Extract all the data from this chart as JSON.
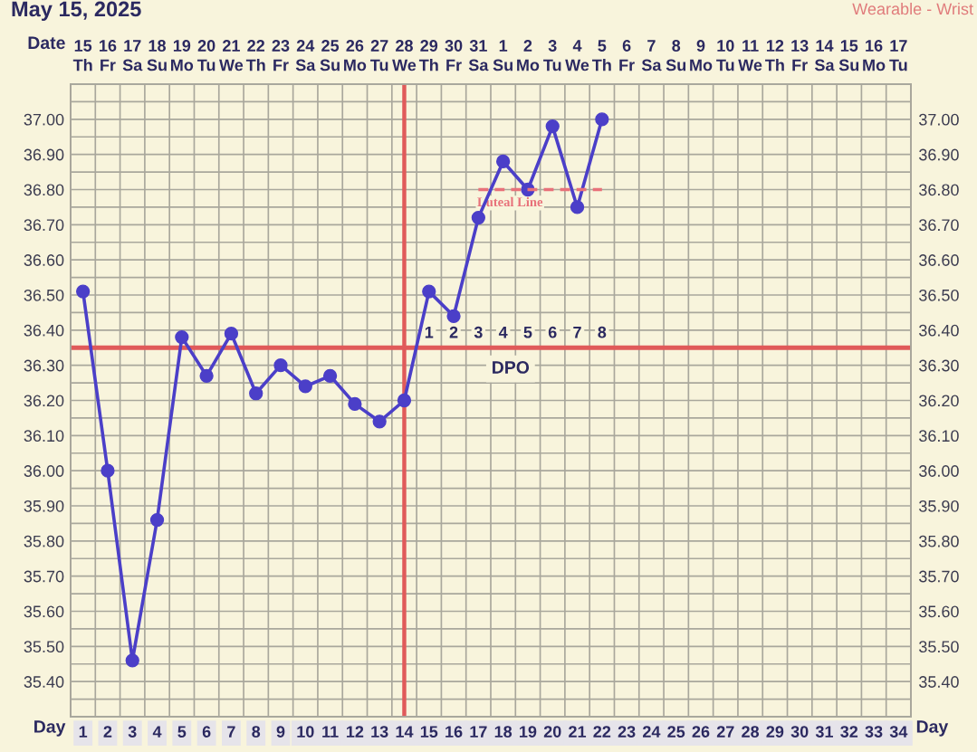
{
  "chart_data": {
    "type": "line",
    "title": "May 15, 2025",
    "xlabel": "Day",
    "x2label": "Date",
    "annotations": [
      "Wearable - Wrist",
      "DPO",
      {
        "text": "1",
        "x": 15,
        "y": 36.39
      },
      {
        "text": "2",
        "x": 16,
        "y": 36.39
      },
      {
        "text": "3",
        "x": 17,
        "y": 36.39
      },
      {
        "text": "4",
        "x": 18,
        "y": 36.39
      },
      {
        "text": "5",
        "x": 19,
        "y": 36.39
      },
      {
        "text": "6",
        "x": 20,
        "y": 36.39
      },
      {
        "text": "7",
        "x": 21,
        "y": 36.39
      },
      {
        "text": "8",
        "x": 22,
        "y": 36.39
      }
    ],
    "xlim": [
      0.5,
      34.5
    ],
    "xticks": [
      1,
      2,
      3,
      4,
      5,
      6,
      7,
      8,
      9,
      10,
      11,
      12,
      13,
      14,
      15,
      16,
      17,
      18,
      19,
      20,
      21,
      22,
      23,
      24,
      25,
      26,
      27,
      28,
      29,
      30,
      31,
      32,
      33,
      34
    ],
    "x2lim": [
      "2025-05-14T12:00",
      "2025-06-17T12:00"
    ],
    "x2ticks": [
      {
        "value": "2025-05-15",
        "label": "15\nTh"
      },
      {
        "value": "2025-05-16",
        "label": "16\nFr"
      },
      {
        "value": "2025-05-17",
        "label": "17\nSa"
      },
      {
        "value": "2025-05-18",
        "label": "18\nSu"
      },
      {
        "value": "2025-05-19",
        "label": "19\nMo"
      },
      {
        "value": "2025-05-20",
        "label": "20\nTu"
      },
      {
        "value": "2025-05-21",
        "label": "21\nWe"
      },
      {
        "value": "2025-05-22",
        "label": "22\nTh"
      },
      {
        "value": "2025-05-23",
        "label": "23\nFr"
      },
      {
        "value": "2025-05-24",
        "label": "24\nSa"
      },
      {
        "value": "2025-05-25",
        "label": "25\nSu"
      },
      {
        "value": "2025-05-26",
        "label": "26\nMo"
      },
      {
        "value": "2025-05-27",
        "label": "27\nTu"
      },
      {
        "value": "2025-05-28",
        "label": "28\nWe"
      },
      {
        "value": "2025-05-29",
        "label": "29\nTh"
      },
      {
        "value": "2025-05-30",
        "label": "30\nFr"
      },
      {
        "value": "2025-05-31",
        "label": "31\nSa"
      },
      {
        "value": "2025-06-01",
        "label": "1\nSu"
      },
      {
        "value": "2025-06-02",
        "label": "2\nMo"
      },
      {
        "value": "2025-06-03",
        "label": "3\nTu"
      },
      {
        "value": "2025-06-04",
        "label": "4\nWe"
      },
      {
        "value": "2025-06-05",
        "label": "5\nTh"
      },
      {
        "value": "2025-06-06",
        "label": "6\nFr"
      },
      {
        "value": "2025-06-07",
        "label": "7\nSa"
      },
      {
        "value": "2025-06-08",
        "label": "8\nSu"
      },
      {
        "value": "2025-06-09",
        "label": "9\nMo"
      },
      {
        "value": "2025-06-10",
        "label": "10\nTu"
      },
      {
        "value": "2025-06-11",
        "label": "11\nWe"
      },
      {
        "value": "2025-06-12",
        "label": "12\nTh"
      },
      {
        "value": "2025-06-13",
        "label": "13\nFr"
      },
      {
        "value": "2025-06-14",
        "label": "14\nSa"
      },
      {
        "value": "2025-06-15",
        "label": "15\nSu"
      },
      {
        "value": "2025-06-16",
        "label": "16\nMo"
      },
      {
        "value": "2025-06-17",
        "label": "17\nTu"
      }
    ],
    "ylim": [
      35.3,
      37.1
    ],
    "yticks": [
      {
        "value": 35.4,
        "label": "35.40"
      },
      {
        "value": 35.5,
        "label": "35.50"
      },
      {
        "value": 35.6,
        "label": "35.60"
      },
      {
        "value": 35.7,
        "label": "35.70"
      },
      {
        "value": 35.8,
        "label": "35.80"
      },
      {
        "value": 35.9,
        "label": "35.90"
      },
      {
        "value": 36.0,
        "label": "36.00"
      },
      {
        "value": 36.1,
        "label": "36.10"
      },
      {
        "value": 36.2,
        "label": "36.20"
      },
      {
        "value": 36.3,
        "label": "36.30"
      },
      {
        "value": 36.4,
        "label": "36.40"
      },
      {
        "value": 36.5,
        "label": "36.50"
      },
      {
        "value": 36.6,
        "label": "36.60"
      },
      {
        "value": 36.7,
        "label": "36.70"
      },
      {
        "value": 36.8,
        "label": "36.80"
      },
      {
        "value": 36.9,
        "label": "36.90"
      },
      {
        "value": 37.0,
        "label": "37.00"
      }
    ],
    "y2lim": [
      35.3,
      37.1
    ],
    "y2ticks": [
      {
        "value": 35.4,
        "label": "35.40"
      },
      {
        "value": 35.5,
        "label": "35.50"
      },
      {
        "value": 35.6,
        "label": "35.60"
      },
      {
        "value": 35.7,
        "label": "35.70"
      },
      {
        "value": 35.8,
        "label": "35.80"
      },
      {
        "value": 35.9,
        "label": "35.90"
      },
      {
        "value": 36.0,
        "label": "36.00"
      },
      {
        "value": 36.1,
        "label": "36.10"
      },
      {
        "value": 36.2,
        "label": "36.20"
      },
      {
        "value": 36.3,
        "label": "36.30"
      },
      {
        "value": 36.4,
        "label": "36.40"
      },
      {
        "value": 36.5,
        "label": "36.50"
      },
      {
        "value": 36.6,
        "label": "36.60"
      },
      {
        "value": 36.7,
        "label": "36.70"
      },
      {
        "value": 36.8,
        "label": "36.80"
      },
      {
        "value": 36.9,
        "label": "36.90"
      },
      {
        "value": 37.0,
        "label": "37.00"
      }
    ],
    "series": [
      {
        "color": "#4b3fc8",
        "x": [
          1,
          2,
          3,
          4,
          5,
          6,
          7,
          8,
          9,
          10,
          11,
          12,
          13,
          14,
          15,
          16,
          17,
          18,
          19,
          20,
          21,
          22
        ],
        "values": [
          36.51,
          36.0,
          35.46,
          35.86,
          36.38,
          36.27,
          36.39,
          36.22,
          36.3,
          36.24,
          36.27,
          36.19,
          36.14,
          36.2,
          36.51,
          36.44,
          36.72,
          36.88,
          36.8,
          36.98,
          36.75,
          37.0
        ]
      },
      {
        "type": "line",
        "name": "Luteal Line",
        "color": "#e8717a",
        "x": [
          17,
          22
        ],
        "values": [
          36.8,
          36.8
        ],
        "line_style": "dashed",
        "marker": "none"
      }
    ],
    "ref_lines": [
      {
        "axis": "x",
        "value": 14,
        "color": "#e05a5a"
      },
      {
        "axis": "y",
        "value": 36.35,
        "color": "#e05a5a"
      }
    ],
    "grid": true,
    "marker": "circle",
    "line_style": "solid"
  }
}
